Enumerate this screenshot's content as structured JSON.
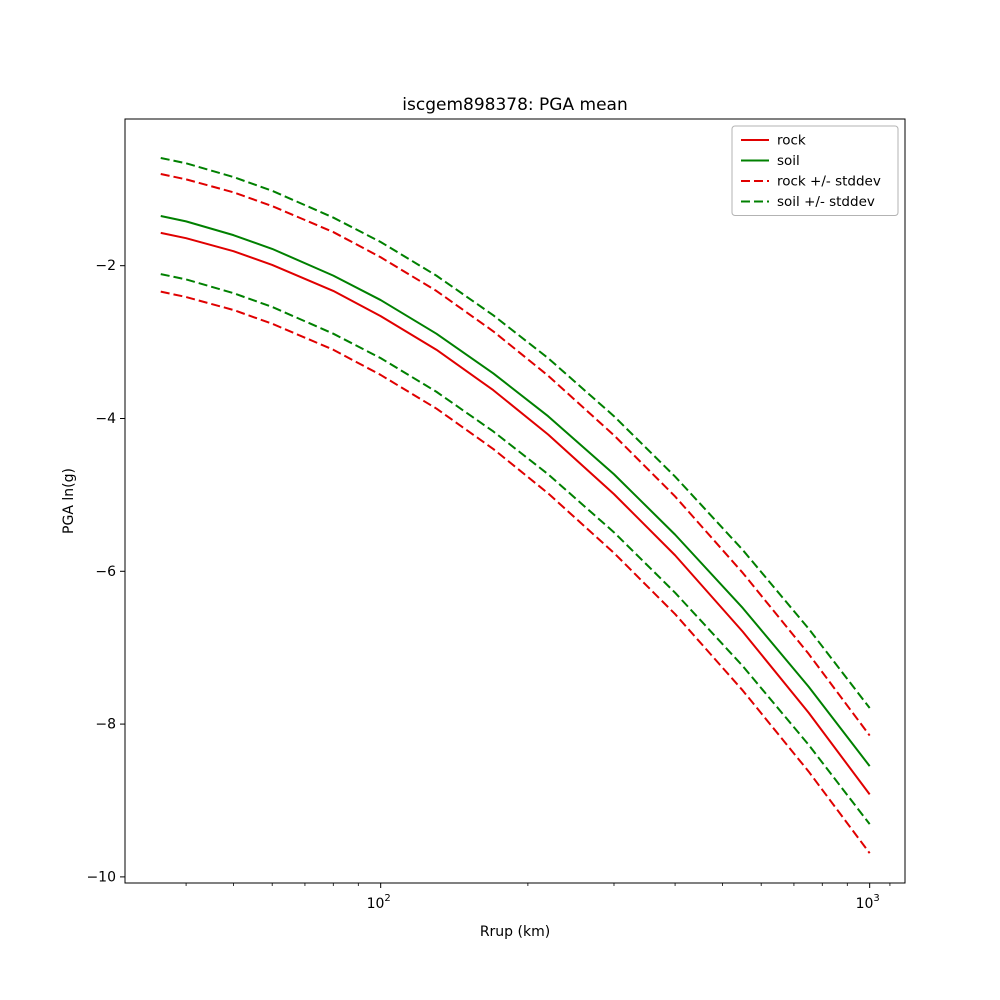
{
  "figure": {
    "title": "iscgem898378: PGA mean",
    "xlabel": "Rrup (km)",
    "ylabel": "PGA ln(g)"
  },
  "chart_data": {
    "type": "line",
    "title": "iscgem898378: PGA mean",
    "xlabel": "Rrup (km)",
    "ylabel": "PGA ln(g)",
    "x_scale": "log",
    "y_scale": "linear",
    "grid": false,
    "legend_position": "upper right",
    "xlim": [
      30,
      1181
    ],
    "ylim": [
      -10.08,
      -0.08
    ],
    "yticks": [
      -10,
      -8,
      -6,
      -4,
      -2
    ],
    "xticks": [
      {
        "value": 100,
        "label_base": "10",
        "label_exp": "2"
      },
      {
        "value": 1000,
        "label_base": "10",
        "label_exp": "3"
      }
    ],
    "x_minor_ticks": [
      40,
      50,
      60,
      70,
      80,
      90,
      200,
      300,
      400,
      500,
      600,
      700,
      800,
      900,
      1100
    ],
    "x": [
      35.5,
      40,
      50,
      60,
      80,
      100,
      130,
      170,
      220,
      300,
      400,
      550,
      750,
      1000
    ],
    "lines": [
      {
        "name": "rock",
        "color": "#e00000",
        "dash": "solid",
        "values": [
          -1.57,
          -1.64,
          -1.81,
          -1.99,
          -2.33,
          -2.66,
          -3.1,
          -3.63,
          -4.21,
          -4.99,
          -5.79,
          -6.79,
          -7.85,
          -8.92
        ]
      },
      {
        "name": "soil",
        "color": "#008000",
        "dash": "solid",
        "values": [
          -1.35,
          -1.42,
          -1.6,
          -1.78,
          -2.13,
          -2.45,
          -2.89,
          -3.41,
          -3.97,
          -4.73,
          -5.52,
          -6.48,
          -7.51,
          -8.55
        ]
      },
      {
        "name": "rock-plus-stddev",
        "color": "#e00000",
        "dash": "dashed",
        "values": [
          -0.8,
          -0.87,
          -1.04,
          -1.22,
          -1.56,
          -1.89,
          -2.33,
          -2.86,
          -3.44,
          -4.22,
          -5.02,
          -6.02,
          -7.08,
          -8.15
        ]
      },
      {
        "name": "rock-minus-stddev",
        "color": "#e00000",
        "dash": "dashed",
        "values": [
          -2.34,
          -2.41,
          -2.58,
          -2.76,
          -3.1,
          -3.43,
          -3.87,
          -4.4,
          -4.98,
          -5.76,
          -6.56,
          -7.56,
          -8.62,
          -9.69
        ]
      },
      {
        "name": "soil-plus-stddev",
        "color": "#008000",
        "dash": "dashed",
        "values": [
          -0.59,
          -0.66,
          -0.84,
          -1.02,
          -1.37,
          -1.69,
          -2.13,
          -2.65,
          -3.21,
          -3.97,
          -4.76,
          -5.72,
          -6.75,
          -7.79
        ]
      },
      {
        "name": "soil-minus-stddev",
        "color": "#008000",
        "dash": "dashed",
        "values": [
          -2.11,
          -2.18,
          -2.36,
          -2.54,
          -2.89,
          -3.21,
          -3.65,
          -4.17,
          -4.73,
          -5.49,
          -6.28,
          -7.24,
          -8.27,
          -9.31
        ]
      }
    ],
    "legend": [
      {
        "label": "rock",
        "color": "#e00000",
        "dash": "solid"
      },
      {
        "label": "soil",
        "color": "#008000",
        "dash": "solid"
      },
      {
        "label": "rock +/- stddev",
        "color": "#e00000",
        "dash": "dashed"
      },
      {
        "label": "soil +/- stddev",
        "color": "#008000",
        "dash": "dashed"
      }
    ]
  }
}
